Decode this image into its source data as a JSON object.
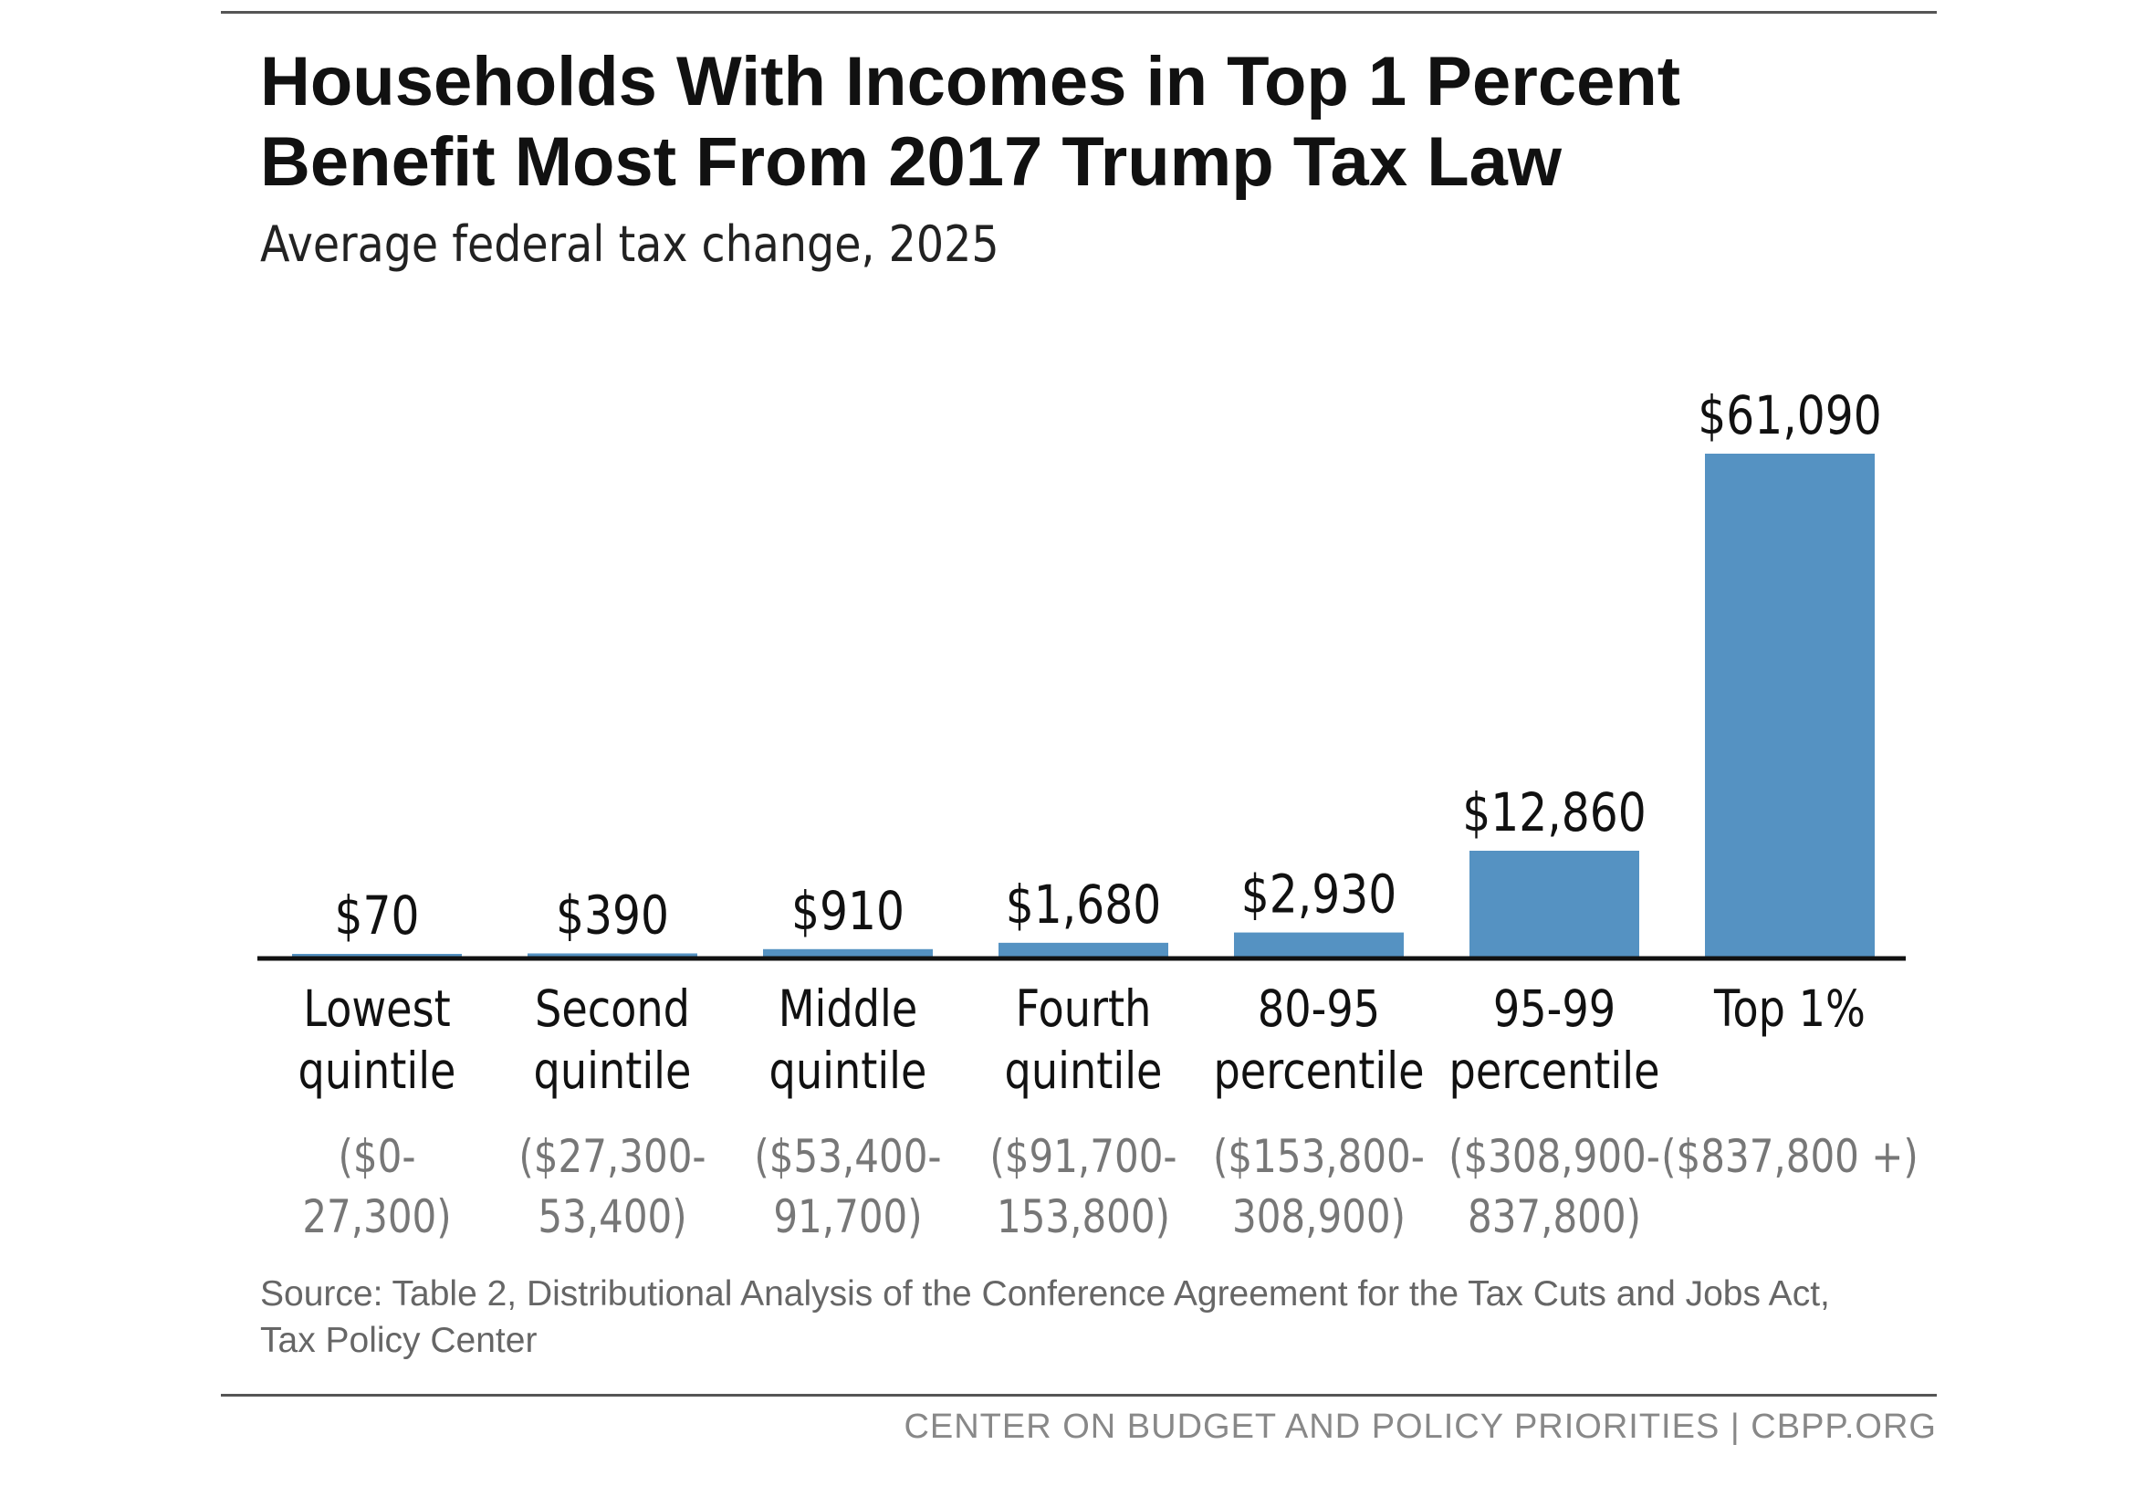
{
  "title_line1": "Households With Incomes in Top 1 Percent",
  "title_line2": "Benefit Most From 2017 Trump Tax Law",
  "subtitle": "Average federal tax change, 2025",
  "source_text": "Source: Table 2, Distributional Analysis of the Conference Agreement for the Tax Cuts and Jobs Act, Tax Policy Center",
  "footer_text": "CENTER ON BUDGET AND POLICY PRIORITIES | CBPP.ORG",
  "chart_data": {
    "type": "bar",
    "title": "Households With Incomes in Top 1 Percent Benefit Most From 2017 Trump Tax Law",
    "subtitle": "Average federal tax change, 2025",
    "categories": [
      {
        "line1": "Lowest",
        "line2": "quintile",
        "range1": "($0-",
        "range2": "27,300)"
      },
      {
        "line1": "Second",
        "line2": "quintile",
        "range1": "($27,300-",
        "range2": "53,400)"
      },
      {
        "line1": "Middle",
        "line2": "quintile",
        "range1": "($53,400-",
        "range2": "91,700)"
      },
      {
        "line1": "Fourth",
        "line2": "quintile",
        "range1": "($91,700-",
        "range2": "153,800)"
      },
      {
        "line1": "80-95",
        "line2": "percentile",
        "range1": "($153,800-",
        "range2": "308,900)"
      },
      {
        "line1": "95-99",
        "line2": "percentile",
        "range1": "($308,900-",
        "range2": "837,800)"
      },
      {
        "line1": "Top 1%",
        "line2": "",
        "range1": "($837,800 +)",
        "range2": ""
      }
    ],
    "values": [
      70,
      390,
      910,
      1680,
      2930,
      12860,
      61090
    ],
    "value_labels": [
      "$70",
      "$390",
      "$910",
      "$1,680",
      "$2,930",
      "$12,860",
      "$61,090"
    ],
    "ylim": [
      0,
      61090
    ],
    "grid": false,
    "legend": "none",
    "bar_color": "#5592c2",
    "axis_color": "#111111"
  }
}
